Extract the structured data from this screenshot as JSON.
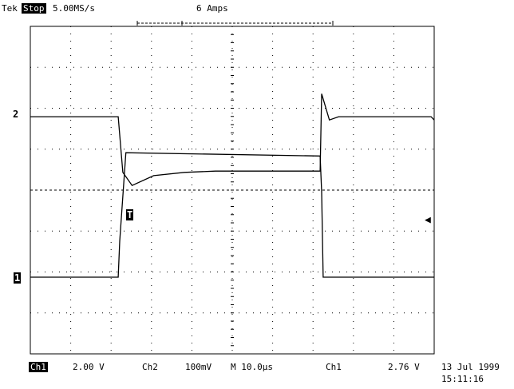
{
  "header": {
    "brand": "Tek",
    "mode": "Stop",
    "sample_rate": "5.00MS/s",
    "trigger_level": "6 Amps"
  },
  "markers": {
    "ch2": "2",
    "trigger": "T",
    "ch1": "1"
  },
  "footer": {
    "ch1_label": "Ch1",
    "ch1_scale": "2.00 V",
    "ch2_label": "Ch2",
    "ch2_scale": "100mV",
    "timebase": "M 10.0µs",
    "trigger_source": "Ch1",
    "trigger_value": "2.76 V",
    "date": "13 Jul 1999",
    "time": "15:11:16"
  },
  "chart_data": {
    "type": "line",
    "divisions": {
      "horizontal": 10,
      "vertical": 8
    },
    "series": [
      {
        "channel": "Ch2",
        "points": [
          [
            0,
            2.45
          ],
          [
            2.85,
            2.45
          ],
          [
            3.0,
            1.6
          ],
          [
            3.3,
            1.4
          ],
          [
            4,
            1.55
          ],
          [
            5,
            1.6
          ],
          [
            6,
            1.62
          ],
          [
            7,
            1.62
          ],
          [
            9.4,
            1.62
          ],
          [
            9.45,
            2.8
          ],
          [
            9.7,
            2.4
          ],
          [
            10,
            2.45
          ],
          [
            13,
            2.45
          ],
          [
            13.1,
            2.4
          ]
        ]
      },
      {
        "channel": "Ch1",
        "points": [
          [
            0,
            0
          ],
          [
            2.85,
            0
          ],
          [
            2.9,
            0.55
          ],
          [
            3.1,
            1.9
          ],
          [
            9.4,
            1.85
          ],
          [
            9.45,
            1.3
          ],
          [
            9.5,
            0
          ],
          [
            13.1,
            0
          ]
        ]
      }
    ]
  }
}
